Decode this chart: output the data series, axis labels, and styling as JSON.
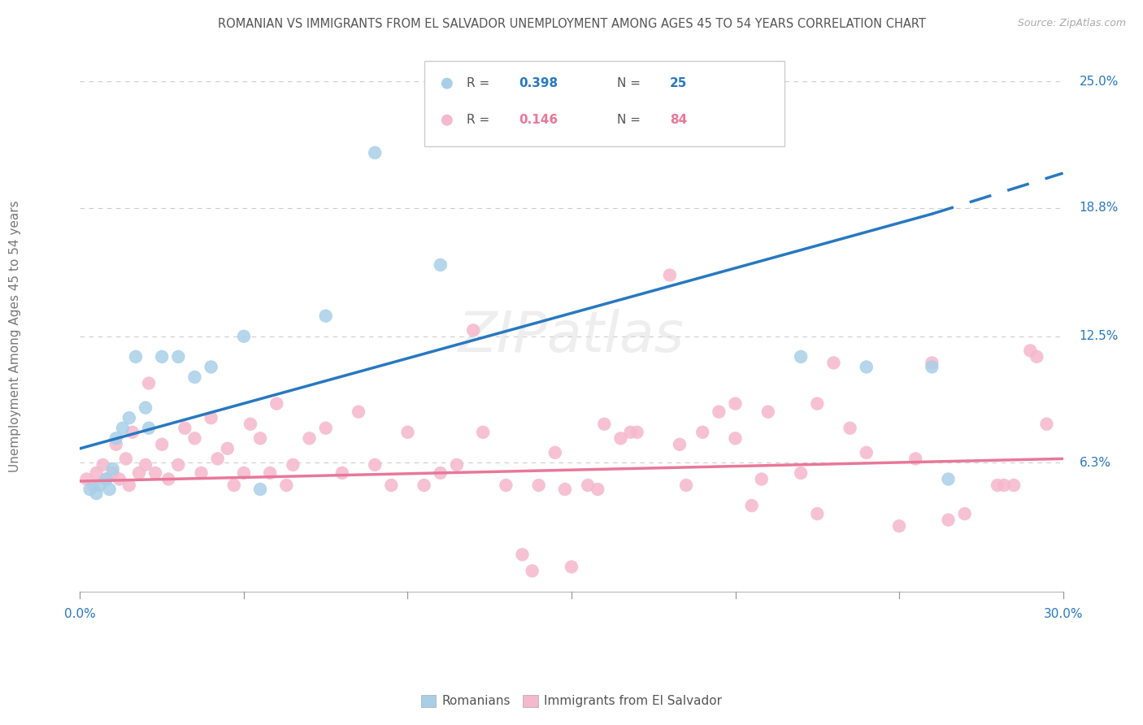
{
  "title": "ROMANIAN VS IMMIGRANTS FROM EL SALVADOR UNEMPLOYMENT AMONG AGES 45 TO 54 YEARS CORRELATION CHART",
  "source": "Source: ZipAtlas.com",
  "ylabel": "Unemployment Among Ages 45 to 54 years",
  "ytick_values": [
    0.0,
    6.3,
    12.5,
    18.8,
    25.0
  ],
  "ytick_right_labels": [
    "",
    "6.3%",
    "12.5%",
    "18.8%",
    "25.0%"
  ],
  "xmin": 0.0,
  "xmax": 30.0,
  "ymin": -3.0,
  "ymax": 26.5,
  "watermark": "ZIPatlas",
  "r_blue": "0.398",
  "n_blue": "25",
  "r_pink": "0.146",
  "n_pink": "84",
  "label_romanians": "Romanians",
  "label_salvador": "Immigrants from El Salvador",
  "color_blue_scatter": "#a8cfe8",
  "color_pink_scatter": "#f5b8cc",
  "color_blue_line": "#2878c0",
  "color_pink_line": "#e8789a",
  "blue_line_x0": 0.0,
  "blue_line_y0": 7.0,
  "blue_line_x1": 26.0,
  "blue_line_y1": 18.5,
  "blue_dash_x1": 30.0,
  "blue_dash_y1": 20.5,
  "pink_line_x0": 0.0,
  "pink_line_y0": 5.4,
  "pink_line_x1": 30.0,
  "pink_line_y1": 6.5,
  "romanians_x": [
    0.3,
    0.5,
    0.6,
    0.8,
    0.9,
    1.0,
    1.1,
    1.3,
    1.5,
    1.7,
    2.0,
    2.1,
    2.5,
    3.0,
    3.5,
    4.0,
    5.0,
    5.5,
    7.5,
    9.0,
    11.0,
    22.0,
    24.0,
    26.0,
    26.5
  ],
  "romanians_y": [
    5.0,
    4.8,
    5.2,
    5.5,
    5.0,
    6.0,
    7.5,
    8.0,
    8.5,
    11.5,
    9.0,
    8.0,
    11.5,
    11.5,
    10.5,
    11.0,
    12.5,
    5.0,
    13.5,
    21.5,
    16.0,
    11.5,
    11.0,
    11.0,
    5.5
  ],
  "salvador_x": [
    0.2,
    0.4,
    0.5,
    0.7,
    0.8,
    1.0,
    1.1,
    1.2,
    1.4,
    1.5,
    1.6,
    1.8,
    2.0,
    2.1,
    2.3,
    2.5,
    2.7,
    3.0,
    3.2,
    3.5,
    3.7,
    4.0,
    4.2,
    4.5,
    4.7,
    5.0,
    5.2,
    5.5,
    5.8,
    6.0,
    6.3,
    6.5,
    7.0,
    7.5,
    8.0,
    8.5,
    9.0,
    9.5,
    10.0,
    10.5,
    11.0,
    11.5,
    12.0,
    12.3,
    13.0,
    13.5,
    14.0,
    14.5,
    15.0,
    15.5,
    16.0,
    17.0,
    18.0,
    18.5,
    19.0,
    20.0,
    20.5,
    21.0,
    22.0,
    22.5,
    23.0,
    24.0,
    25.0,
    26.0,
    27.0,
    28.0,
    28.5,
    29.0,
    29.5,
    16.5,
    13.8,
    15.8,
    20.0,
    22.5,
    25.5,
    26.5,
    28.2,
    29.2,
    14.8,
    16.8,
    18.3,
    19.5,
    20.8,
    23.5
  ],
  "salvador_y": [
    5.5,
    5.2,
    5.8,
    6.2,
    5.5,
    5.8,
    7.2,
    5.5,
    6.5,
    5.2,
    7.8,
    5.8,
    6.2,
    10.2,
    5.8,
    7.2,
    5.5,
    6.2,
    8.0,
    7.5,
    5.8,
    8.5,
    6.5,
    7.0,
    5.2,
    5.8,
    8.2,
    7.5,
    5.8,
    9.2,
    5.2,
    6.2,
    7.5,
    8.0,
    5.8,
    8.8,
    6.2,
    5.2,
    7.8,
    5.2,
    5.8,
    6.2,
    12.8,
    7.8,
    5.2,
    1.8,
    5.2,
    6.8,
    1.2,
    5.2,
    8.2,
    7.8,
    15.5,
    5.2,
    7.8,
    9.2,
    4.2,
    8.8,
    5.8,
    3.8,
    11.2,
    6.8,
    3.2,
    11.2,
    3.8,
    5.2,
    5.2,
    11.8,
    8.2,
    7.5,
    1.0,
    5.0,
    7.5,
    9.2,
    6.5,
    3.5,
    5.2,
    11.5,
    5.0,
    7.8,
    7.2,
    8.8,
    5.5,
    8.0
  ]
}
